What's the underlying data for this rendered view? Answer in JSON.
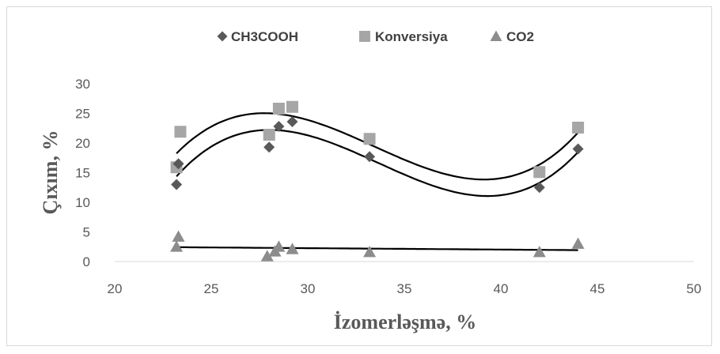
{
  "chart_data": {
    "type": "scatter",
    "title": "",
    "xlabel": "İzomerləşmə, %",
    "ylabel": "Çıxım, %",
    "xlim": [
      20,
      50
    ],
    "ylim": [
      0,
      30
    ],
    "x_ticks": [
      "20",
      "25",
      "30",
      "35",
      "40",
      "45",
      "50"
    ],
    "y_ticks": [
      "0",
      "5",
      "10",
      "15",
      "20",
      "25",
      "30"
    ],
    "grid": false,
    "legend_position": "top",
    "series": [
      {
        "name": "CH3COOH",
        "marker": "diamond",
        "color": "#595959",
        "points": [
          [
            23.2,
            13.0
          ],
          [
            23.3,
            16.5
          ],
          [
            28.0,
            19.3
          ],
          [
            28.5,
            22.8
          ],
          [
            29.2,
            23.6
          ],
          [
            33.2,
            17.7
          ],
          [
            42.0,
            12.5
          ],
          [
            44.0,
            19.0
          ]
        ],
        "trendline": "polynomial-3"
      },
      {
        "name": "Konversiya",
        "marker": "square",
        "color": "#a6a6a6",
        "points": [
          [
            23.2,
            15.9
          ],
          [
            23.4,
            21.9
          ],
          [
            28.0,
            21.4
          ],
          [
            28.5,
            25.8
          ],
          [
            29.2,
            26.1
          ],
          [
            33.2,
            20.7
          ],
          [
            42.0,
            15.1
          ],
          [
            44.0,
            22.6
          ]
        ],
        "trendline": "polynomial-3"
      },
      {
        "name": "CO2",
        "marker": "triangle",
        "color": "#8c8c8c",
        "points": [
          [
            23.2,
            2.5
          ],
          [
            23.3,
            4.2
          ],
          [
            27.9,
            0.9
          ],
          [
            28.3,
            1.7
          ],
          [
            28.5,
            2.5
          ],
          [
            29.2,
            2.1
          ],
          [
            33.2,
            1.6
          ],
          [
            42.0,
            1.6
          ],
          [
            44.0,
            3.0
          ]
        ],
        "trendline": "linear"
      }
    ]
  }
}
